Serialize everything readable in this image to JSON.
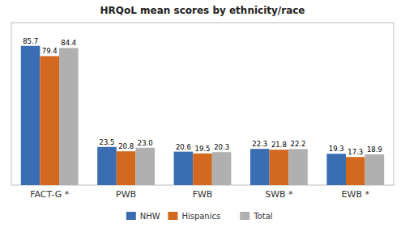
{
  "chart_data": {
    "type": "bar",
    "title": "HRQoL mean scores by ethnicity/race",
    "categories": [
      "FACT-G *",
      "PWB",
      "FWB",
      "SWB *",
      "EWB *"
    ],
    "series": [
      {
        "name": "NHW",
        "color": "#3B6DB3",
        "values": [
          85.7,
          23.5,
          20.6,
          22.3,
          19.3
        ],
        "value_labels": [
          "85.7",
          "23.5",
          "20.6",
          "22.3",
          "19.3"
        ]
      },
      {
        "name": "Hispanics",
        "color": "#D2691E",
        "values": [
          79.4,
          20.8,
          19.5,
          21.8,
          17.3
        ],
        "value_labels": [
          "79.4",
          "20.8",
          "19.5",
          "21.8",
          "17.3"
        ]
      },
      {
        "name": "Total",
        "color": "#B0B0B0",
        "values": [
          84.4,
          23.0,
          20.3,
          22.2,
          18.9
        ],
        "value_labels": [
          "84.4",
          "23.0",
          "20.3",
          "22.2",
          "18.9"
        ]
      }
    ],
    "ylim": [
      0,
      100
    ],
    "data_labels": true,
    "tick_labels": "x",
    "grid": false,
    "legend": "bottom"
  }
}
